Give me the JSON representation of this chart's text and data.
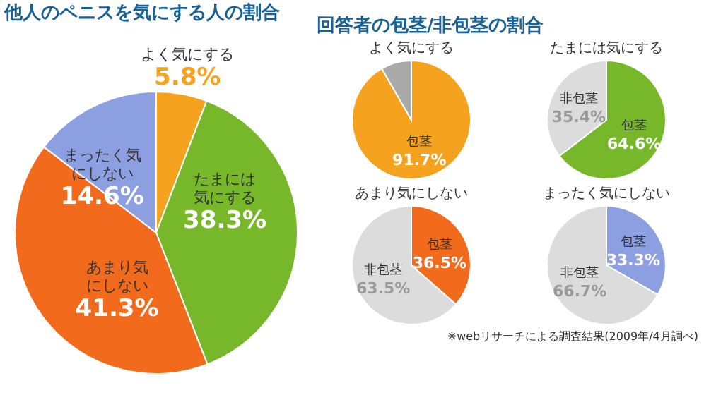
{
  "chart_data": [
    {
      "type": "pie",
      "title": "他人のペニスを気にする人の割合",
      "categories": [
        "よく気にする",
        "たまには気にする",
        "あまり気にしない",
        "まったく気にしない"
      ],
      "values": [
        5.8,
        38.3,
        41.3,
        14.6
      ],
      "colors": [
        "#f5a21e",
        "#76b82a",
        "#f26b1d",
        "#8c9fe0"
      ],
      "value_labels": [
        "5.8%",
        "38.3%",
        "41.3%",
        "14.6%"
      ]
    },
    {
      "type": "pie",
      "title": "よく気にする",
      "annotations": [
        "回答者の包茎/非包茎の割合"
      ],
      "categories": [
        "包茎",
        null
      ],
      "values": [
        91.7,
        8.3
      ],
      "colors": [
        "#f5a21e",
        "#aaaaaa"
      ],
      "value_labels": [
        "91.7%",
        null
      ]
    },
    {
      "type": "pie",
      "title": "たまには気にする",
      "categories": [
        "包茎",
        "非包茎"
      ],
      "values": [
        64.6,
        35.4
      ],
      "colors": [
        "#76b82a",
        "#dcdcdc"
      ],
      "value_labels": [
        "64.6%",
        "35.4%"
      ]
    },
    {
      "type": "pie",
      "title": "あまり気にしない",
      "categories": [
        "包茎",
        "非包茎"
      ],
      "values": [
        36.5,
        63.5
      ],
      "colors": [
        "#f26b1d",
        "#dcdcdc"
      ],
      "value_labels": [
        "36.5%",
        "63.5%"
      ]
    },
    {
      "type": "pie",
      "title": "まったく気にしない",
      "annotations": [
        "※webリサーチによる調査結果(2009年/4月調べ)"
      ],
      "categories": [
        "包茎",
        "非包茎"
      ],
      "values": [
        33.3,
        66.7
      ],
      "colors": [
        "#8c9fe0",
        "#dcdcdc"
      ],
      "value_labels": [
        "33.3%",
        "66.7%"
      ]
    }
  ]
}
